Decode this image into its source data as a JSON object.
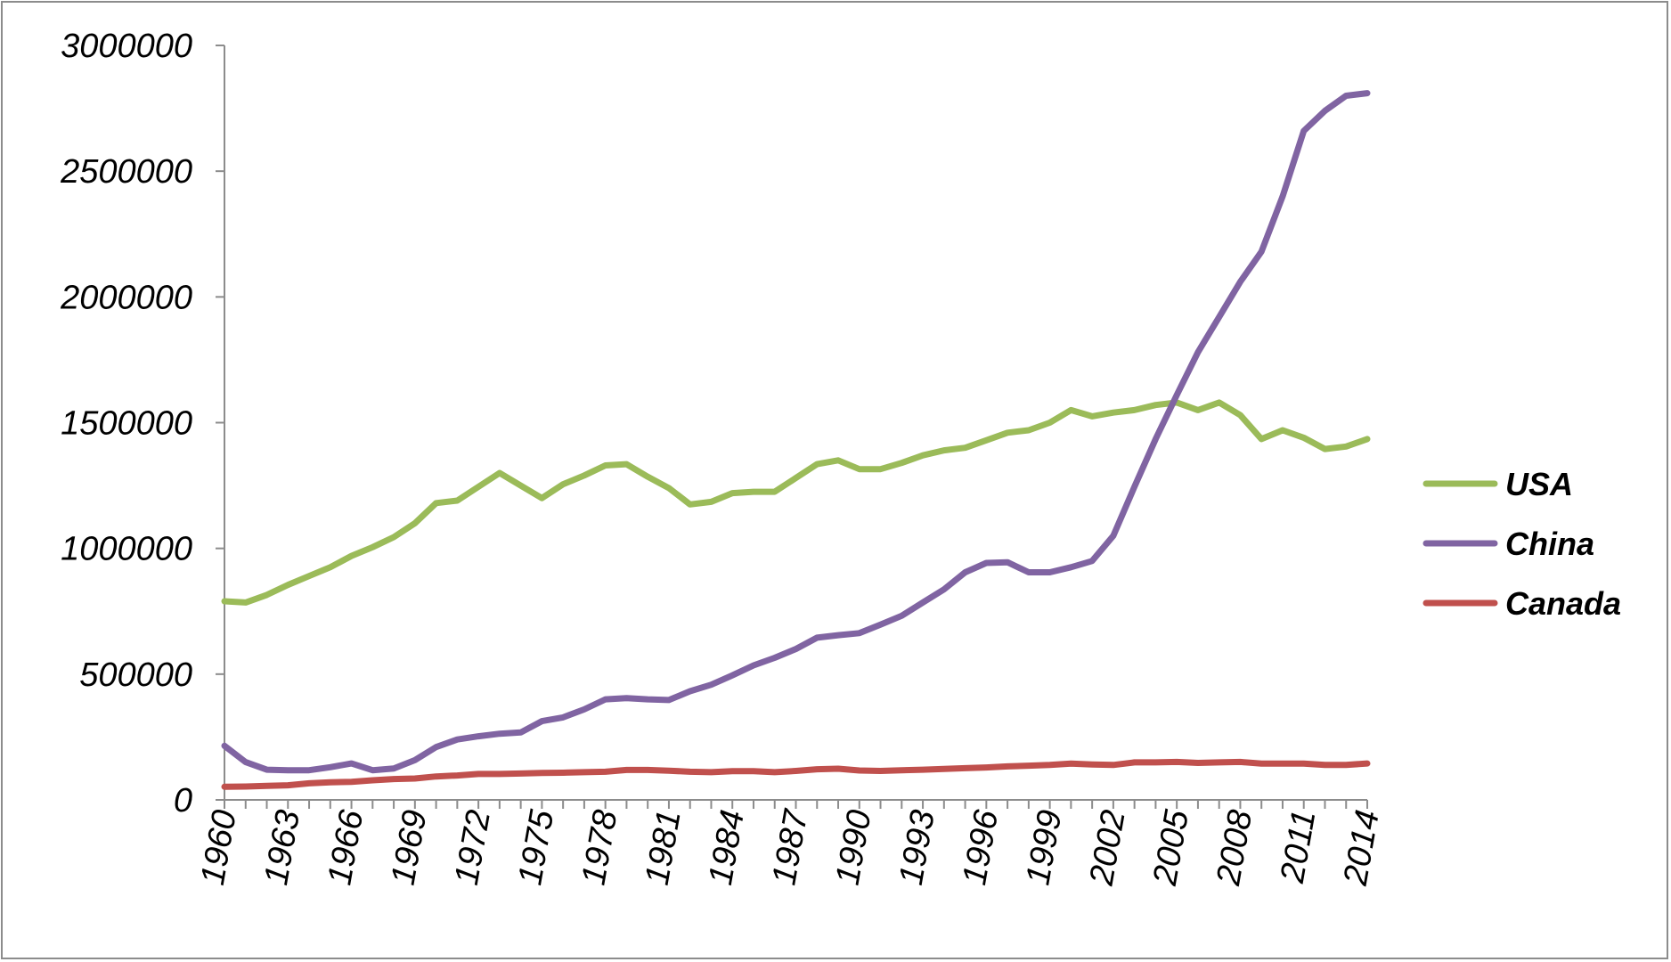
{
  "chart_data": {
    "type": "line",
    "title": "",
    "xlabel": "",
    "ylabel": "",
    "x": [
      1960,
      1961,
      1962,
      1963,
      1964,
      1965,
      1966,
      1967,
      1968,
      1969,
      1970,
      1971,
      1972,
      1973,
      1974,
      1975,
      1976,
      1977,
      1978,
      1979,
      1980,
      1981,
      1982,
      1983,
      1984,
      1985,
      1986,
      1987,
      1988,
      1989,
      1990,
      1991,
      1992,
      1993,
      1994,
      1995,
      1996,
      1997,
      1998,
      1999,
      2000,
      2001,
      2002,
      2003,
      2004,
      2005,
      2006,
      2007,
      2008,
      2009,
      2010,
      2011,
      2012,
      2013,
      2014
    ],
    "x_tick_labels": [
      "1960",
      "1963",
      "1966",
      "1969",
      "1972",
      "1975",
      "1978",
      "1981",
      "1984",
      "1987",
      "1990",
      "1993",
      "1996",
      "1999",
      "2002",
      "2005",
      "2008",
      "2011",
      "2014"
    ],
    "y_tick_labels": [
      "0",
      "500000",
      "1000000",
      "1500000",
      "2000000",
      "2500000",
      "3000000"
    ],
    "ylim": [
      0,
      3000000
    ],
    "grid": false,
    "legend_position": "right",
    "series": [
      {
        "name": "USA",
        "color": "#9bbb59",
        "values": [
          790000,
          785000,
          815000,
          855000,
          890000,
          925000,
          970000,
          1005000,
          1045000,
          1100000,
          1180000,
          1190000,
          1245000,
          1300000,
          1250000,
          1200000,
          1255000,
          1290000,
          1330000,
          1335000,
          1285000,
          1240000,
          1175000,
          1185000,
          1220000,
          1225000,
          1225000,
          1280000,
          1335000,
          1350000,
          1315000,
          1315000,
          1340000,
          1370000,
          1390000,
          1400000,
          1430000,
          1460000,
          1470000,
          1500000,
          1550000,
          1525000,
          1540000,
          1550000,
          1570000,
          1580000,
          1550000,
          1580000,
          1530000,
          1435000,
          1470000,
          1440000,
          1395000,
          1405000,
          1435000
        ]
      },
      {
        "name": "China",
        "color": "#8064a2",
        "values": [
          215000,
          150000,
          120000,
          118000,
          118000,
          130000,
          145000,
          118000,
          125000,
          158000,
          210000,
          240000,
          253000,
          263000,
          268000,
          313000,
          328000,
          360000,
          400000,
          405000,
          400000,
          397000,
          432000,
          458000,
          495000,
          535000,
          565000,
          600000,
          645000,
          655000,
          663000,
          697000,
          732000,
          785000,
          837000,
          905000,
          942000,
          945000,
          905000,
          905000,
          925000,
          950000,
          1050000,
          1245000,
          1435000,
          1610000,
          1780000,
          1920000,
          2060000,
          2180000,
          2400000,
          2660000,
          2740000,
          2800000,
          2810000
        ]
      },
      {
        "name": "Canada",
        "color": "#c0504d",
        "values": [
          52000,
          53000,
          56000,
          58000,
          66000,
          70000,
          72000,
          78000,
          83000,
          85000,
          93000,
          97000,
          103000,
          103000,
          105000,
          107000,
          108000,
          110000,
          112000,
          119000,
          119000,
          116000,
          112000,
          110000,
          114000,
          114000,
          110000,
          115000,
          122000,
          124000,
          117000,
          115000,
          118000,
          120000,
          123000,
          126000,
          129000,
          133000,
          136000,
          139000,
          144000,
          141000,
          139000,
          149000,
          149000,
          151000,
          147000,
          149000,
          151000,
          144000,
          144000,
          144000,
          139000,
          139000,
          145000
        ]
      }
    ]
  }
}
